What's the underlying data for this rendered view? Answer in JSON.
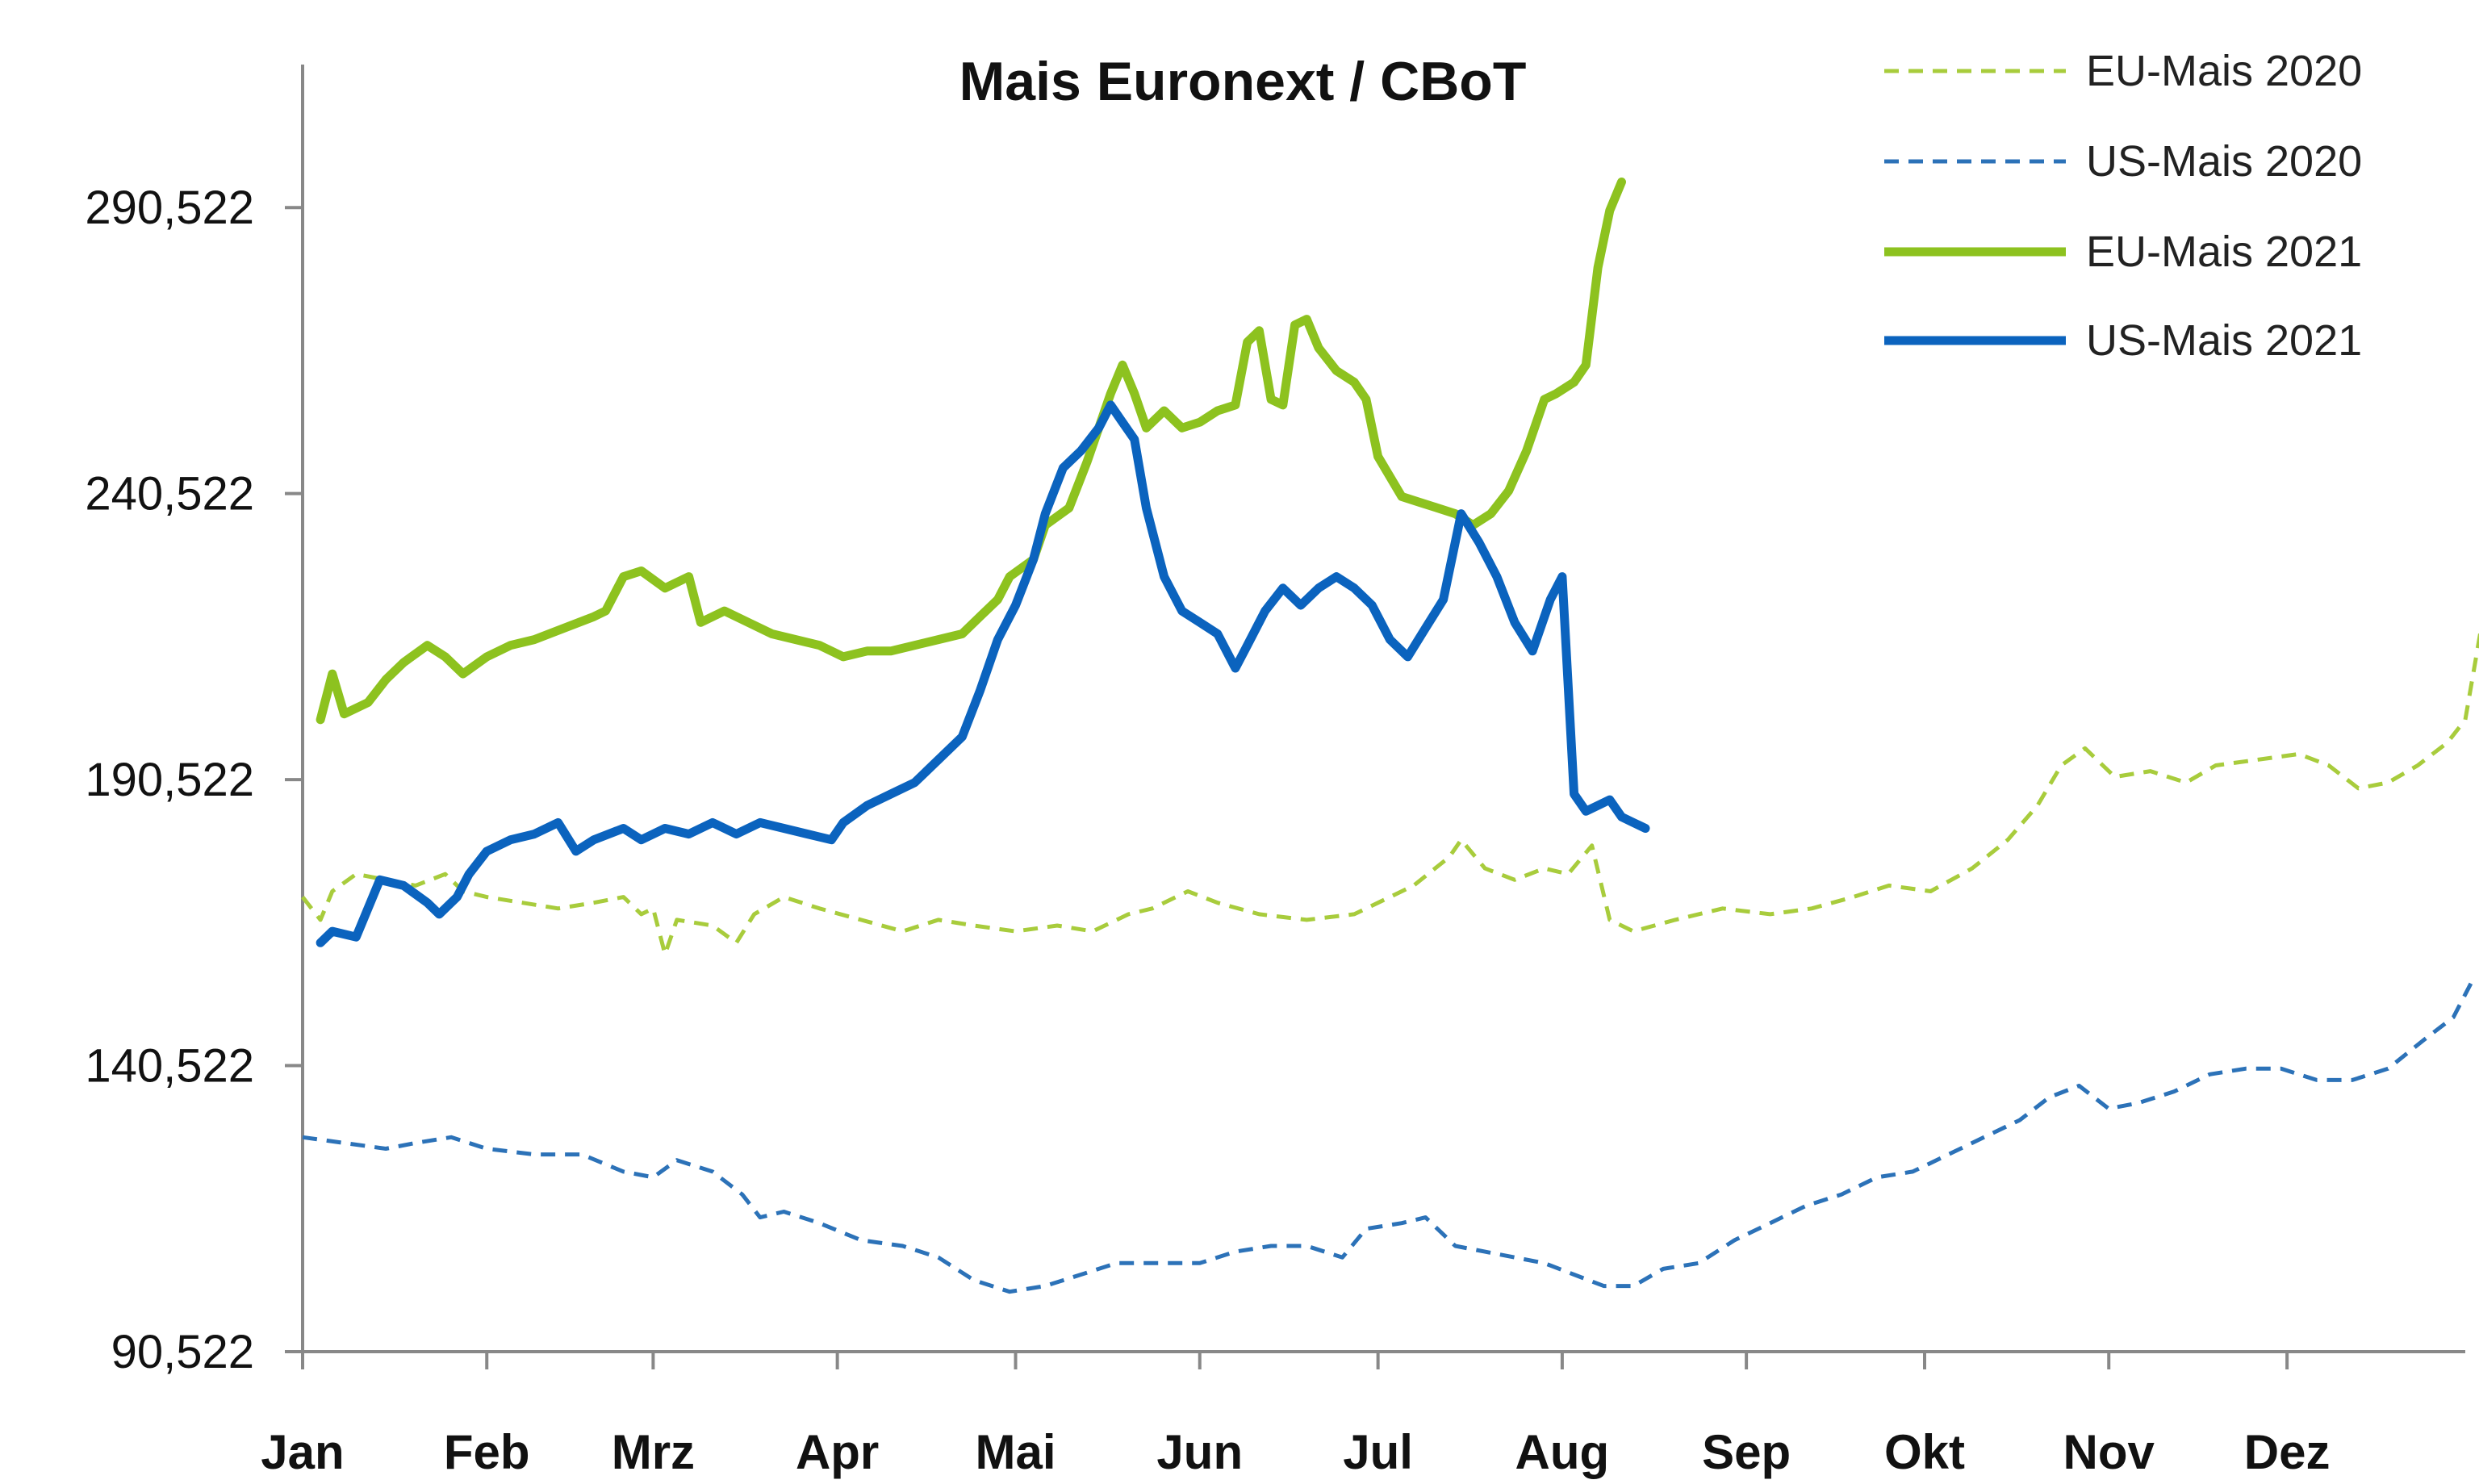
{
  "chart_data": {
    "type": "line",
    "title": "Mais Euronext / CBoT",
    "xlabel": "",
    "ylabel": "",
    "x_unit": "day_of_year",
    "xlim": [
      1,
      365
    ],
    "ylim": [
      90.522,
      315.522
    ],
    "yticks": [
      90.522,
      140.522,
      190.522,
      240.522,
      290.522
    ],
    "ytick_labels": [
      "90,522",
      "140,522",
      "190,522",
      "240,522",
      "290,522"
    ],
    "months": [
      {
        "label": "Jan",
        "start": 1
      },
      {
        "label": "Feb",
        "start": 32
      },
      {
        "label": "Mrz",
        "start": 60
      },
      {
        "label": "Apr",
        "start": 91
      },
      {
        "label": "Mai",
        "start": 121
      },
      {
        "label": "Jun",
        "start": 152
      },
      {
        "label": "Jul",
        "start": 182
      },
      {
        "label": "Aug",
        "start": 213
      },
      {
        "label": "Sep",
        "start": 244
      },
      {
        "label": "Okt",
        "start": 274
      },
      {
        "label": "Nov",
        "start": 305
      },
      {
        "label": "Dez",
        "start": 335
      }
    ],
    "grid": false,
    "legend_position": "top-right",
    "series": [
      {
        "name": "EU-Mais 2020",
        "color": "#a8cc3c",
        "style": "dashed",
        "points": [
          [
            1,
            170
          ],
          [
            4,
            166
          ],
          [
            6,
            171
          ],
          [
            10,
            174
          ],
          [
            15,
            173
          ],
          [
            20,
            172
          ],
          [
            25,
            174
          ],
          [
            28,
            171
          ],
          [
            32,
            170
          ],
          [
            38,
            169
          ],
          [
            44,
            168
          ],
          [
            50,
            169
          ],
          [
            55,
            170
          ],
          [
            58,
            167
          ],
          [
            60,
            168
          ],
          [
            62,
            160
          ],
          [
            64,
            166
          ],
          [
            70,
            165
          ],
          [
            74,
            162
          ],
          [
            77,
            167
          ],
          [
            82,
            170
          ],
          [
            88,
            168
          ],
          [
            95,
            166
          ],
          [
            102,
            164
          ],
          [
            108,
            166
          ],
          [
            114,
            165
          ],
          [
            121,
            164
          ],
          [
            128,
            165
          ],
          [
            134,
            164
          ],
          [
            140,
            167
          ],
          [
            144,
            168
          ],
          [
            150,
            171
          ],
          [
            155,
            169
          ],
          [
            162,
            167
          ],
          [
            170,
            166
          ],
          [
            178,
            167
          ],
          [
            184,
            170
          ],
          [
            188,
            172
          ],
          [
            194,
            177
          ],
          [
            196,
            180
          ],
          [
            200,
            175
          ],
          [
            205,
            173
          ],
          [
            210,
            175
          ],
          [
            214,
            174
          ],
          [
            218,
            179
          ],
          [
            221,
            166
          ],
          [
            225,
            164
          ],
          [
            232,
            166
          ],
          [
            240,
            168
          ],
          [
            248,
            167
          ],
          [
            255,
            168
          ],
          [
            262,
            170
          ],
          [
            268,
            172
          ],
          [
            275,
            171
          ],
          [
            282,
            175
          ],
          [
            288,
            180
          ],
          [
            293,
            186
          ],
          [
            297,
            193
          ],
          [
            301,
            196
          ],
          [
            306,
            191
          ],
          [
            312,
            192
          ],
          [
            318,
            190
          ],
          [
            323,
            193
          ],
          [
            330,
            194
          ],
          [
            337,
            195
          ],
          [
            342,
            193
          ],
          [
            347,
            189
          ],
          [
            352,
            190
          ],
          [
            357,
            193
          ],
          [
            362,
            197
          ],
          [
            365,
            201
          ],
          [
            368,
            219
          ]
        ]
      },
      {
        "name": "US-Mais 2020",
        "color": "#2c72b8",
        "style": "dashed",
        "points": [
          [
            1,
            128
          ],
          [
            8,
            127
          ],
          [
            15,
            126
          ],
          [
            20,
            127
          ],
          [
            26,
            128
          ],
          [
            32,
            126
          ],
          [
            40,
            125
          ],
          [
            48,
            125
          ],
          [
            55,
            122
          ],
          [
            60,
            121
          ],
          [
            64,
            124
          ],
          [
            70,
            122
          ],
          [
            75,
            118
          ],
          [
            78,
            114
          ],
          [
            82,
            115
          ],
          [
            88,
            113
          ],
          [
            95,
            110
          ],
          [
            102,
            109
          ],
          [
            108,
            107
          ],
          [
            114,
            103
          ],
          [
            120,
            101
          ],
          [
            126,
            102
          ],
          [
            132,
            104
          ],
          [
            138,
            106
          ],
          [
            145,
            106
          ],
          [
            152,
            106
          ],
          [
            158,
            108
          ],
          [
            164,
            109
          ],
          [
            170,
            109
          ],
          [
            176,
            107
          ],
          [
            180,
            112
          ],
          [
            186,
            113
          ],
          [
            190,
            114
          ],
          [
            195,
            109
          ],
          [
            200,
            108
          ],
          [
            205,
            107
          ],
          [
            210,
            106
          ],
          [
            215,
            104
          ],
          [
            220,
            102
          ],
          [
            225,
            102
          ],
          [
            230,
            105
          ],
          [
            236,
            106
          ],
          [
            242,
            110
          ],
          [
            248,
            113
          ],
          [
            254,
            116
          ],
          [
            260,
            118
          ],
          [
            266,
            121
          ],
          [
            272,
            122
          ],
          [
            278,
            125
          ],
          [
            284,
            128
          ],
          [
            290,
            131
          ],
          [
            295,
            135
          ],
          [
            300,
            137
          ],
          [
            305,
            133
          ],
          [
            310,
            134
          ],
          [
            316,
            136
          ],
          [
            322,
            139
          ],
          [
            328,
            140
          ],
          [
            334,
            140
          ],
          [
            340,
            138
          ],
          [
            346,
            138
          ],
          [
            352,
            140
          ],
          [
            358,
            145
          ],
          [
            363,
            149
          ],
          [
            366,
            155
          ]
        ]
      },
      {
        "name": "EU-Mais 2021",
        "color": "#8dc21f",
        "style": "solid",
        "points": [
          [
            4,
            201
          ],
          [
            6,
            209
          ],
          [
            8,
            202
          ],
          [
            12,
            204
          ],
          [
            15,
            208
          ],
          [
            18,
            211
          ],
          [
            22,
            214
          ],
          [
            25,
            212
          ],
          [
            28,
            209
          ],
          [
            32,
            212
          ],
          [
            36,
            214
          ],
          [
            40,
            215
          ],
          [
            45,
            217
          ],
          [
            50,
            219
          ],
          [
            52,
            220
          ],
          [
            55,
            226
          ],
          [
            58,
            227
          ],
          [
            62,
            224
          ],
          [
            66,
            226
          ],
          [
            68,
            218
          ],
          [
            72,
            220
          ],
          [
            76,
            218
          ],
          [
            80,
            216
          ],
          [
            84,
            215
          ],
          [
            88,
            214
          ],
          [
            90,
            213
          ],
          [
            92,
            212
          ],
          [
            96,
            213
          ],
          [
            100,
            213
          ],
          [
            104,
            214
          ],
          [
            108,
            215
          ],
          [
            112,
            216
          ],
          [
            115,
            219
          ],
          [
            118,
            222
          ],
          [
            120,
            226
          ],
          [
            124,
            229
          ],
          [
            126,
            235
          ],
          [
            130,
            238
          ],
          [
            133,
            246
          ],
          [
            135,
            252
          ],
          [
            137,
            258
          ],
          [
            139,
            263
          ],
          [
            141,
            258
          ],
          [
            143,
            252
          ],
          [
            146,
            255
          ],
          [
            149,
            252
          ],
          [
            152,
            253
          ],
          [
            155,
            255
          ],
          [
            158,
            256
          ],
          [
            160,
            267
          ],
          [
            162,
            269
          ],
          [
            164,
            257
          ],
          [
            166,
            256
          ],
          [
            168,
            270
          ],
          [
            170,
            271
          ],
          [
            172,
            266
          ],
          [
            175,
            262
          ],
          [
            178,
            260
          ],
          [
            180,
            257
          ],
          [
            182,
            247
          ],
          [
            186,
            240
          ],
          [
            189,
            239
          ],
          [
            192,
            238
          ],
          [
            195,
            237
          ],
          [
            198,
            235
          ],
          [
            201,
            237
          ],
          [
            204,
            241
          ],
          [
            207,
            248
          ],
          [
            210,
            257
          ],
          [
            212,
            258
          ],
          [
            215,
            260
          ],
          [
            217,
            263
          ],
          [
            219,
            280
          ],
          [
            221,
            290
          ],
          [
            223,
            295
          ]
        ]
      },
      {
        "name": "US-Mais 2021",
        "color": "#0b63be",
        "style": "solid",
        "points": [
          [
            4,
            162
          ],
          [
            6,
            164
          ],
          [
            10,
            163
          ],
          [
            14,
            173
          ],
          [
            18,
            172
          ],
          [
            22,
            169
          ],
          [
            24,
            167
          ],
          [
            27,
            170
          ],
          [
            29,
            174
          ],
          [
            32,
            178
          ],
          [
            36,
            180
          ],
          [
            40,
            181
          ],
          [
            44,
            183
          ],
          [
            47,
            178
          ],
          [
            50,
            180
          ],
          [
            55,
            182
          ],
          [
            58,
            180
          ],
          [
            62,
            182
          ],
          [
            66,
            181
          ],
          [
            70,
            183
          ],
          [
            74,
            181
          ],
          [
            78,
            183
          ],
          [
            82,
            182
          ],
          [
            86,
            181
          ],
          [
            90,
            180
          ],
          [
            92,
            183
          ],
          [
            96,
            186
          ],
          [
            100,
            188
          ],
          [
            104,
            190
          ],
          [
            108,
            194
          ],
          [
            112,
            198
          ],
          [
            115,
            206
          ],
          [
            118,
            215
          ],
          [
            121,
            221
          ],
          [
            124,
            229
          ],
          [
            126,
            237
          ],
          [
            129,
            245
          ],
          [
            132,
            248
          ],
          [
            135,
            252
          ],
          [
            137,
            256
          ],
          [
            139,
            253
          ],
          [
            141,
            250
          ],
          [
            143,
            238
          ],
          [
            146,
            226
          ],
          [
            149,
            220
          ],
          [
            152,
            218
          ],
          [
            155,
            216
          ],
          [
            158,
            210
          ],
          [
            160,
            214
          ],
          [
            163,
            220
          ],
          [
            166,
            224
          ],
          [
            169,
            221
          ],
          [
            172,
            224
          ],
          [
            175,
            226
          ],
          [
            178,
            224
          ],
          [
            181,
            221
          ],
          [
            184,
            215
          ],
          [
            187,
            212
          ],
          [
            190,
            217
          ],
          [
            193,
            222
          ],
          [
            196,
            237
          ],
          [
            199,
            232
          ],
          [
            202,
            226
          ],
          [
            205,
            218
          ],
          [
            208,
            213
          ],
          [
            211,
            222
          ],
          [
            213,
            226
          ],
          [
            215,
            188
          ],
          [
            217,
            185
          ],
          [
            219,
            186
          ],
          [
            221,
            187
          ],
          [
            223,
            184
          ],
          [
            225,
            183
          ],
          [
            227,
            182
          ]
        ]
      }
    ]
  }
}
